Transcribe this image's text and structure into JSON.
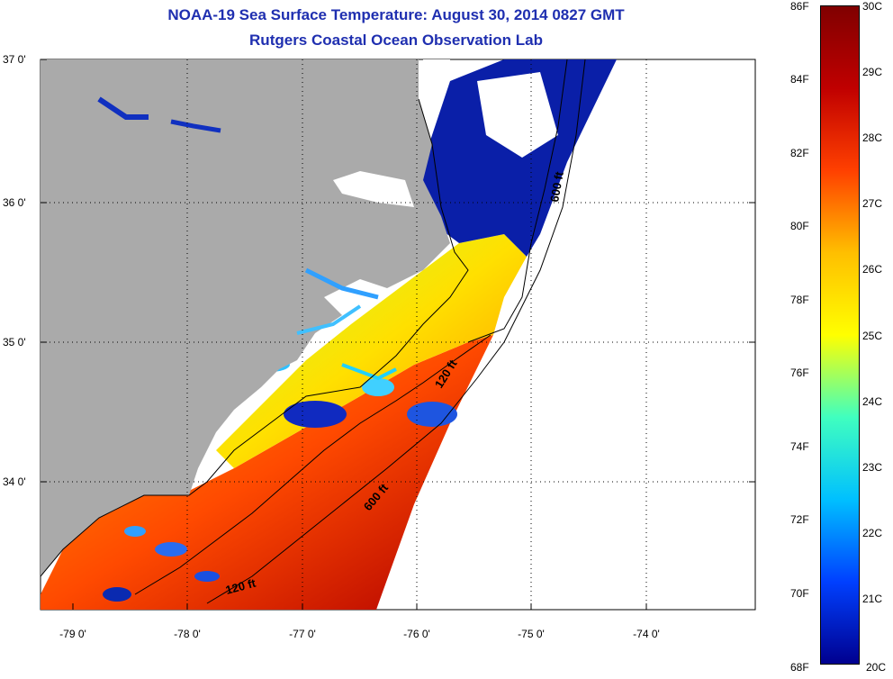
{
  "header": {
    "title": "NOAA-19 Sea Surface Temperature:  August 30, 2014 0827 GMT",
    "subtitle": "Rutgers Coastal Ocean Observation Lab"
  },
  "map": {
    "lat_labels": [
      "37 0'",
      "36 0'",
      "35 0'",
      "34 0'"
    ],
    "lon_labels": [
      "-79 0'",
      "-78 0'",
      "-77 0'",
      "-76 0'",
      "-75 0'",
      "-74 0'"
    ],
    "contour_labels": [
      "600 ft",
      "120 ft",
      "600 ft",
      "120 ft"
    ],
    "land_color": "#aaaaaa"
  },
  "colorbar": {
    "fahrenheit_labels": [
      "86F",
      "84F",
      "82F",
      "80F",
      "78F",
      "76F",
      "74F",
      "72F",
      "70F",
      "68F"
    ],
    "celsius_labels": [
      "30C",
      "29C",
      "28C",
      "27C",
      "26C",
      "25C",
      "24C",
      "23C",
      "22C",
      "21C",
      "20C"
    ],
    "range_c": [
      20,
      30
    ],
    "colors": [
      "#00008f",
      "#0040ff",
      "#00c0ff",
      "#40ffbf",
      "#ffff00",
      "#ffbf00",
      "#ff4000",
      "#c00000",
      "#800000"
    ]
  }
}
